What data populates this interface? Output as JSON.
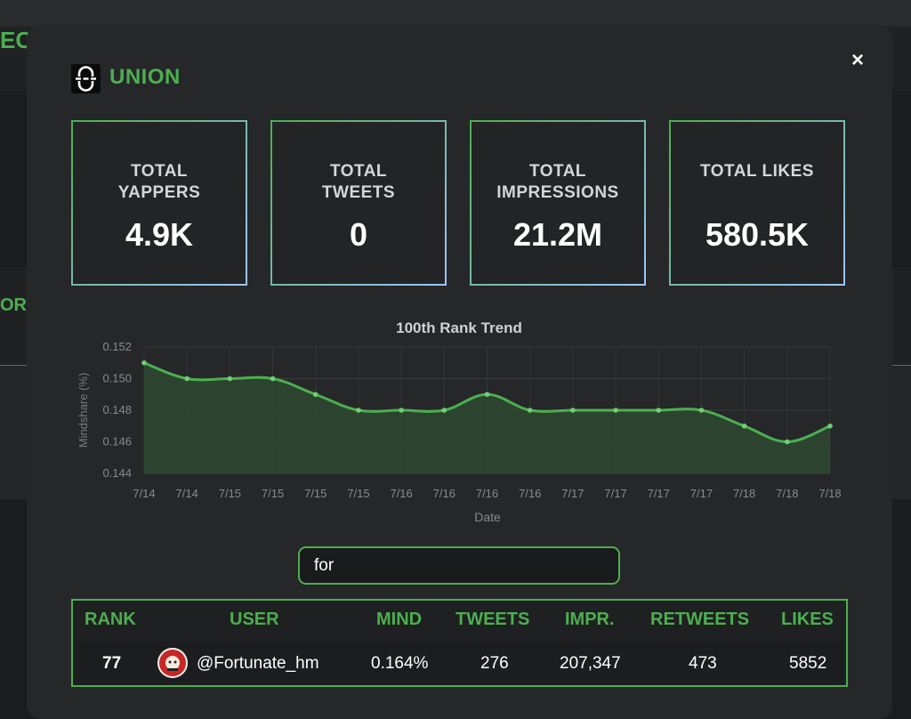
{
  "background": {
    "partial_text_top": "EC",
    "partial_text_mid": "OR"
  },
  "modal": {
    "title": "UNION",
    "close_label": "×",
    "stats": [
      {
        "label": "TOTAL\nYAPPERS",
        "value": "4.9K"
      },
      {
        "label": "TOTAL\nTWEETS",
        "value": "0"
      },
      {
        "label": "TOTAL\nIMPRESSIONS",
        "value": "21.2M"
      },
      {
        "label": "TOTAL LIKES",
        "value": "580.5K"
      }
    ],
    "search": {
      "value": "for",
      "placeholder": ""
    },
    "table": {
      "headers": [
        "RANK",
        "USER",
        "MIND",
        "TWEETS",
        "IMPR.",
        "RETWEETS",
        "LIKES"
      ],
      "rows": [
        {
          "rank": "77",
          "user": "@Fortunate_hm",
          "mind": "0.164%",
          "tweets": "276",
          "impr": "207,347",
          "retweets": "473",
          "likes": "5852"
        }
      ]
    }
  },
  "colors": {
    "accent": "#4caf50",
    "line": "#4caf50",
    "fill": "#2e4a30"
  },
  "chart_data": {
    "type": "area",
    "title": "100th Rank Trend",
    "xlabel": "Date",
    "ylabel": "Mindshare (%)",
    "categories": [
      "7/14",
      "7/14",
      "7/15",
      "7/15",
      "7/15",
      "7/15",
      "7/16",
      "7/16",
      "7/16",
      "7/16",
      "7/17",
      "7/17",
      "7/17",
      "7/17",
      "7/18",
      "7/18",
      "7/18"
    ],
    "values": [
      0.151,
      0.15,
      0.15,
      0.15,
      0.149,
      0.148,
      0.148,
      0.148,
      0.149,
      0.148,
      0.148,
      0.148,
      0.148,
      0.148,
      0.147,
      0.146,
      0.147
    ],
    "yticks": [
      0.144,
      0.146,
      0.148,
      0.15,
      0.152
    ],
    "ylim": [
      0.144,
      0.152
    ],
    "grid": true,
    "legend": "none"
  }
}
